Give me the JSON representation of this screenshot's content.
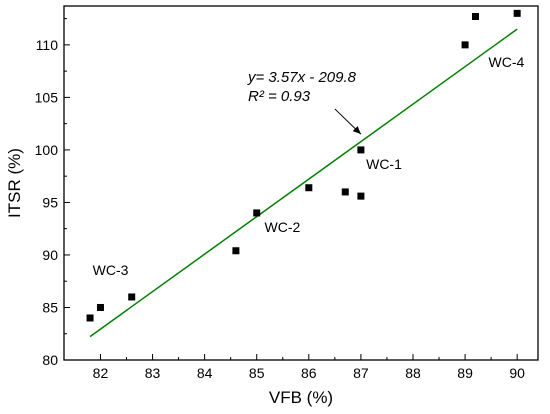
{
  "chart_data": {
    "type": "scatter",
    "xlabel": "VFB (%)",
    "ylabel": "ITSR (%)",
    "xlim": [
      81.3,
      90.4
    ],
    "ylim": [
      80,
      113.7
    ],
    "x_ticks": [
      82,
      83,
      84,
      85,
      86,
      87,
      88,
      89,
      90
    ],
    "y_ticks": [
      80,
      85,
      90,
      95,
      100,
      105,
      110
    ],
    "grid": false,
    "series": [
      {
        "points": [
          {
            "x": 81.8,
            "y": 84.0
          },
          {
            "x": 82.0,
            "y": 85.0
          },
          {
            "x": 82.6,
            "y": 86.0
          },
          {
            "x": 84.6,
            "y": 90.4
          },
          {
            "x": 85.0,
            "y": 94.0
          },
          {
            "x": 86.0,
            "y": 96.4
          },
          {
            "x": 86.7,
            "y": 96.0
          },
          {
            "x": 87.0,
            "y": 95.6
          },
          {
            "x": 87.0,
            "y": 100.0
          },
          {
            "x": 89.0,
            "y": 110.0
          },
          {
            "x": 89.2,
            "y": 112.7
          },
          {
            "x": 90.0,
            "y": 113.0
          }
        ],
        "marker": "square",
        "color": "#000000"
      }
    ],
    "fit_line": {
      "slope": 3.57,
      "intercept": -209.8,
      "x_range": [
        81.8,
        90.0
      ],
      "color": "#008000",
      "equation": "y=  3.57x - 209.8",
      "r2": "R² = 0.93"
    },
    "annotations": [
      {
        "text": "WC-1",
        "x": 87.1,
        "y": 98.2
      },
      {
        "text": "WC-2",
        "x": 85.15,
        "y": 92.2
      },
      {
        "text": "WC-3",
        "x": 81.85,
        "y": 88.1
      },
      {
        "text": "WC-4",
        "x": 89.45,
        "y": 107.9
      }
    ],
    "arrow": {
      "from": [
        86.5,
        103.9
      ],
      "to": [
        87.0,
        101.5
      ]
    }
  }
}
